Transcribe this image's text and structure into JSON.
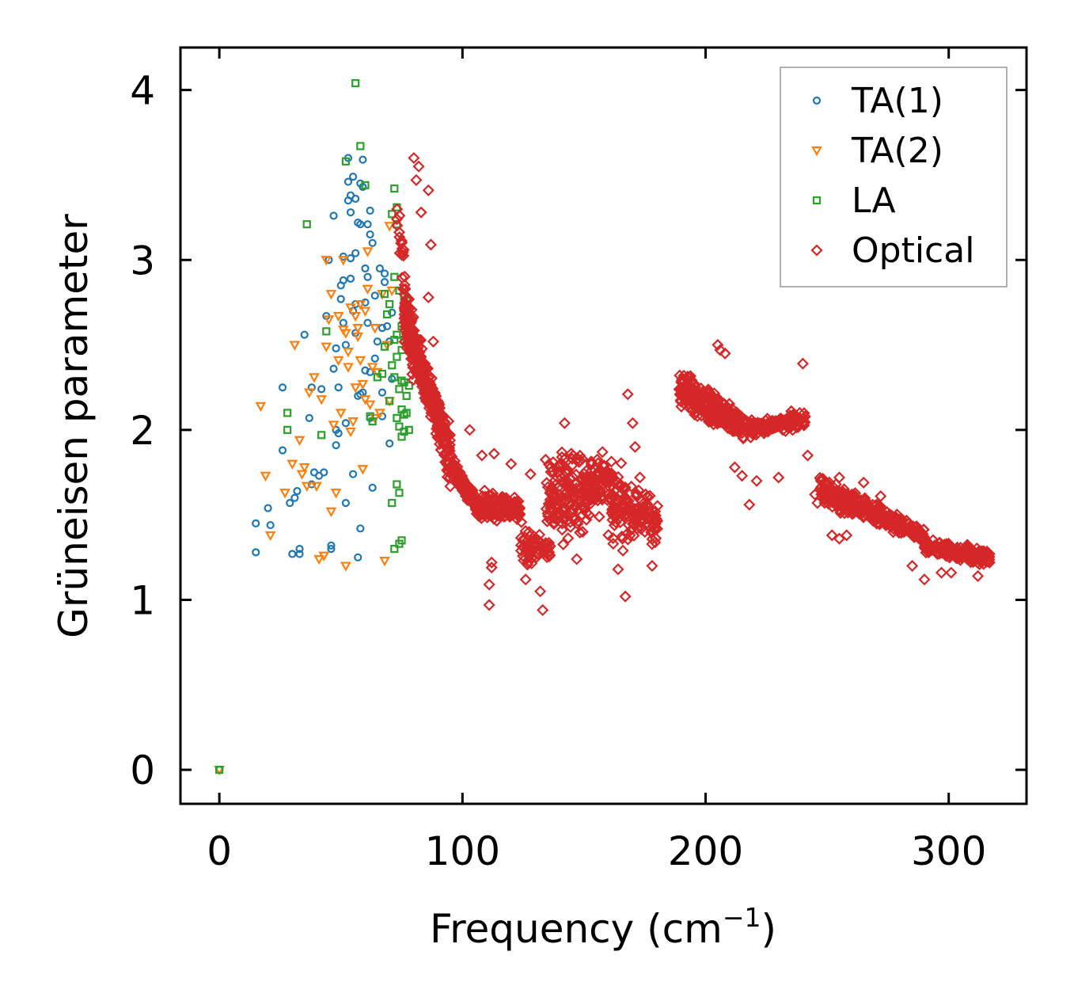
{
  "chart_data": {
    "type": "scatter",
    "title": "",
    "xlabel": "Frequency (cm",
    "xlabel_unit_exponent": "−1",
    "xlabel_close": ")",
    "ylabel": "Grüneisen parameter",
    "xlim": [
      -16,
      332
    ],
    "ylim": [
      -0.2,
      4.25
    ],
    "xticks": [
      0,
      100,
      200,
      300
    ],
    "xtick_labels": [
      "0",
      "100",
      "200",
      "300"
    ],
    "yticks": [
      0,
      1,
      2,
      3,
      4
    ],
    "ytick_labels": [
      "0",
      "1",
      "2",
      "3",
      "4"
    ],
    "legend_position": "top-right",
    "series": [
      {
        "name": "TA(1)",
        "marker": "circle",
        "color": "#1f77b4",
        "points": [
          [
            0,
            0
          ],
          [
            15,
            1.45
          ],
          [
            15,
            1.28
          ],
          [
            20,
            1.54
          ],
          [
            21,
            1.44
          ],
          [
            26,
            1.88
          ],
          [
            26,
            2.25
          ],
          [
            29,
            1.57
          ],
          [
            30,
            1.27
          ],
          [
            31,
            1.6
          ],
          [
            32,
            1.64
          ],
          [
            33,
            1.27
          ],
          [
            33,
            1.3
          ],
          [
            35,
            2.56
          ],
          [
            37,
            2.07
          ],
          [
            38,
            1.68
          ],
          [
            38,
            2.25
          ],
          [
            39,
            1.75
          ],
          [
            41,
            1.73
          ],
          [
            42,
            2.24
          ],
          [
            43,
            1.75
          ],
          [
            44,
            2.67
          ],
          [
            45,
            3.0
          ],
          [
            46,
            1.32
          ],
          [
            46,
            1.3
          ],
          [
            47,
            3.26
          ],
          [
            47,
            2.36
          ],
          [
            48,
            1.91
          ],
          [
            48,
            2.0
          ],
          [
            48,
            2.48
          ],
          [
            49,
            2.25
          ],
          [
            49,
            1.98
          ],
          [
            50,
            2.77
          ],
          [
            50,
            2.85
          ],
          [
            51,
            2.63
          ],
          [
            51,
            2.88
          ],
          [
            51,
            3.02
          ],
          [
            52,
            1.57
          ],
          [
            52,
            2.04
          ],
          [
            52,
            2.5
          ],
          [
            53,
            3.46
          ],
          [
            53,
            3.6
          ],
          [
            53,
            3.35
          ],
          [
            54,
            3.28
          ],
          [
            54,
            3.38
          ],
          [
            54,
            3.01
          ],
          [
            54,
            2.89
          ],
          [
            55,
            1.74
          ],
          [
            55,
            2.7
          ],
          [
            55,
            3.49
          ],
          [
            56,
            3.36
          ],
          [
            56,
            3.04
          ],
          [
            56,
            2.74
          ],
          [
            56,
            2.57
          ],
          [
            57,
            3.22
          ],
          [
            57,
            1.25
          ],
          [
            57,
            2.2
          ],
          [
            58,
            3.45
          ],
          [
            58,
            3.21
          ],
          [
            58,
            2.21
          ],
          [
            58,
            1.42
          ],
          [
            59,
            3.59
          ],
          [
            59,
            3.43
          ],
          [
            59,
            2.22
          ],
          [
            60,
            2.35
          ],
          [
            60,
            2.75
          ],
          [
            60,
            2.95
          ],
          [
            61,
            3.21
          ],
          [
            61,
            2.9
          ],
          [
            61,
            2.63
          ],
          [
            62,
            2.34
          ],
          [
            62,
            3.15
          ],
          [
            62,
            3.29
          ],
          [
            62,
            2.07
          ],
          [
            63,
            3.1
          ],
          [
            63,
            1.66
          ],
          [
            64,
            2.79
          ],
          [
            64,
            2.42
          ],
          [
            65,
            2.52
          ],
          [
            66,
            2.95
          ],
          [
            67,
            2.22
          ],
          [
            67,
            2.6
          ],
          [
            67,
            2.08
          ],
          [
            68,
            2.92
          ],
          [
            68,
            2.87
          ],
          [
            69,
            2.61
          ],
          [
            70,
            2.52
          ],
          [
            70,
            1.92
          ],
          [
            71,
            2.3
          ],
          [
            71,
            2.69
          ]
        ]
      },
      {
        "name": "TA(2)",
        "marker": "triangle-down",
        "color": "#ff7f0e",
        "points": [
          [
            0,
            0
          ],
          [
            17,
            2.14
          ],
          [
            19,
            1.73
          ],
          [
            21,
            1.38
          ],
          [
            27,
            1.63
          ],
          [
            30,
            1.8
          ],
          [
            31,
            2.5
          ],
          [
            33,
            1.94
          ],
          [
            34,
            1.74
          ],
          [
            35,
            1.78
          ],
          [
            36,
            1.67
          ],
          [
            37,
            2.22
          ],
          [
            39,
            2.31
          ],
          [
            40,
            1.67
          ],
          [
            41,
            1.24
          ],
          [
            42,
            2.18
          ],
          [
            43,
            1.26
          ],
          [
            44,
            2.49
          ],
          [
            44,
            3.0
          ],
          [
            45,
            2.65
          ],
          [
            46,
            1.52
          ],
          [
            46,
            2.8
          ],
          [
            47,
            2.03
          ],
          [
            48,
            1.63
          ],
          [
            49,
            2.41
          ],
          [
            49,
            2.67
          ],
          [
            50,
            2.1
          ],
          [
            51,
            2.59
          ],
          [
            51,
            3.0
          ],
          [
            52,
            1.2
          ],
          [
            52,
            2.57
          ],
          [
            53,
            2.37
          ],
          [
            53,
            2.46
          ],
          [
            54,
            1.99
          ],
          [
            54,
            2.72
          ],
          [
            55,
            2.05
          ],
          [
            56,
            2.67
          ],
          [
            56,
            2.25
          ],
          [
            57,
            2.6
          ],
          [
            57,
            2.55
          ],
          [
            58,
            2.74
          ],
          [
            58,
            2.41
          ],
          [
            59,
            2.27
          ],
          [
            59,
            1.77
          ],
          [
            60,
            2.18
          ],
          [
            60,
            2.7
          ],
          [
            61,
            3.05
          ],
          [
            61,
            2.83
          ],
          [
            62,
            2.15
          ],
          [
            63,
            2.37
          ],
          [
            64,
            2.6
          ],
          [
            64,
            2.07
          ],
          [
            65,
            2.34
          ],
          [
            66,
            2.1
          ],
          [
            67,
            2.8
          ],
          [
            68,
            1.23
          ],
          [
            69,
            2.5
          ],
          [
            70,
            2.17
          ],
          [
            70,
            3.2
          ],
          [
            71,
            2.82
          ]
        ]
      },
      {
        "name": "LA",
        "marker": "square",
        "color": "#2ca02c",
        "points": [
          [
            0,
            0
          ],
          [
            28,
            2.1
          ],
          [
            28,
            2.0
          ],
          [
            36,
            3.21
          ],
          [
            42,
            1.97
          ],
          [
            44,
            2.58
          ],
          [
            52,
            3.58
          ],
          [
            56,
            4.04
          ],
          [
            58,
            3.67
          ],
          [
            60,
            3.44
          ],
          [
            62,
            2.08
          ],
          [
            63,
            2.05
          ],
          [
            65,
            2.31
          ],
          [
            67,
            2.33
          ],
          [
            68,
            2.8
          ],
          [
            68,
            2.49
          ],
          [
            69,
            2.68
          ],
          [
            70,
            2.74
          ],
          [
            70,
            2.17
          ],
          [
            71,
            3.27
          ],
          [
            71,
            2.38
          ],
          [
            71,
            1.57
          ],
          [
            72,
            3.42
          ],
          [
            72,
            2.9
          ],
          [
            72,
            2.53
          ],
          [
            72,
            2.31
          ],
          [
            72,
            1.3
          ],
          [
            73,
            3.31
          ],
          [
            73,
            3.21
          ],
          [
            73,
            2.56
          ],
          [
            73,
            2.43
          ],
          [
            73,
            2.07
          ],
          [
            73,
            1.68
          ],
          [
            74,
            2.82
          ],
          [
            74,
            2.24
          ],
          [
            74,
            2.02
          ],
          [
            74,
            1.63
          ],
          [
            74,
            1.33
          ],
          [
            75,
            2.61
          ],
          [
            75,
            2.47
          ],
          [
            75,
            2.29
          ],
          [
            75,
            2.12
          ],
          [
            75,
            1.96
          ],
          [
            75,
            1.35
          ],
          [
            76,
            2.78
          ],
          [
            76,
            2.53
          ],
          [
            76,
            2.28
          ],
          [
            76,
            2.09
          ],
          [
            76,
            1.99
          ],
          [
            77,
            2.54
          ],
          [
            77,
            2.2
          ],
          [
            77,
            2.1
          ],
          [
            78,
            2.26
          ],
          [
            78,
            2.0
          ]
        ]
      },
      {
        "name": "Optical",
        "marker": "diamond",
        "color": "#d62728",
        "segments": [
          {
            "x": [
              73,
              80
            ],
            "y_start": [
              3.2,
              3.4
            ],
            "y_end": [
              2.2,
              2.4
            ],
            "spread": 0.3,
            "count": 40
          },
          {
            "x": [
              76,
              95
            ],
            "y_start": [
              2.8,
              2.55
            ],
            "y_end": [
              1.75,
              1.95
            ],
            "spread": 0.45,
            "count": 360
          },
          {
            "x": [
              95,
              108
            ],
            "y_start": [
              1.85,
              1.75
            ],
            "y_end": [
              1.45,
              1.55
            ],
            "spread": 0.15,
            "count": 140
          },
          {
            "x": [
              108,
              124
            ],
            "y_start": [
              1.5,
              1.62
            ],
            "y_end": [
              1.48,
              1.58
            ],
            "spread": 0.12,
            "count": 130
          },
          {
            "x": [
              124,
              136
            ],
            "y_start": [
              1.5,
              1.18
            ],
            "y_end": [
              1.3,
              1.28
            ],
            "spread": 0.15,
            "count": 60
          },
          {
            "x": [
              134,
              160
            ],
            "y_start": [
              1.3,
              1.82
            ],
            "y_end": [
              1.55,
              1.9
            ],
            "spread": 0.2,
            "count": 230
          },
          {
            "x": [
              160,
              181
            ],
            "y_start": [
              1.85,
              1.35
            ],
            "y_end": [
              1.55,
              1.35
            ],
            "spread": 0.15,
            "count": 160
          },
          {
            "x": [
              189,
              215
            ],
            "y_start": [
              2.35,
              2.15
            ],
            "y_end": [
              2.05,
              2.0
            ],
            "spread": 0.18,
            "count": 280
          },
          {
            "x": [
              215,
              241
            ],
            "y_start": [
              2.05,
              1.95
            ],
            "y_end": [
              2.0,
              2.12
            ],
            "spread": 0.12,
            "count": 160
          },
          {
            "x": [
              247,
              290
            ],
            "y_start": [
              1.72,
              1.58
            ],
            "y_end": [
              1.4,
              1.35
            ],
            "spread": 0.1,
            "count": 340
          },
          {
            "x": [
              290,
              317
            ],
            "y_start": [
              1.35,
              1.28
            ],
            "y_end": [
              1.3,
              1.2
            ],
            "spread": 0.06,
            "count": 170
          }
        ],
        "outliers": [
          [
            80,
            3.6
          ],
          [
            82,
            3.55
          ],
          [
            81,
            3.47
          ],
          [
            86,
            3.41
          ],
          [
            83,
            3.28
          ],
          [
            87,
            3.09
          ],
          [
            86,
            2.78
          ],
          [
            88,
            2.52
          ],
          [
            103,
            2.0
          ],
          [
            108,
            1.85
          ],
          [
            112,
            1.22
          ],
          [
            111,
            1.09
          ],
          [
            112,
            1.19
          ],
          [
            113,
            1.86
          ],
          [
            111,
            0.97
          ],
          [
            120,
            1.8
          ],
          [
            127,
            1.22
          ],
          [
            126,
            1.12
          ],
          [
            128,
            1.74
          ],
          [
            132,
            1.05
          ],
          [
            133,
            0.94
          ],
          [
            141,
            1.45
          ],
          [
            142,
            2.04
          ],
          [
            147,
            1.24
          ],
          [
            164,
            1.18
          ],
          [
            166,
            1.29
          ],
          [
            167,
            1.02
          ],
          [
            168,
            2.21
          ],
          [
            170,
            2.04
          ],
          [
            171,
            1.9
          ],
          [
            173,
            1.72
          ],
          [
            175,
            1.4
          ],
          [
            178,
            1.2
          ],
          [
            205,
            2.5
          ],
          [
            206,
            2.47
          ],
          [
            208,
            2.45
          ],
          [
            212,
            1.78
          ],
          [
            215,
            1.73
          ],
          [
            218,
            1.56
          ],
          [
            221,
            1.7
          ],
          [
            230,
            1.72
          ],
          [
            240,
            2.39
          ],
          [
            242,
            1.85
          ],
          [
            245,
            1.62
          ],
          [
            246,
            1.57
          ],
          [
            250,
            1.67
          ],
          [
            252,
            1.38
          ],
          [
            255,
            1.72
          ],
          [
            255,
            1.36
          ],
          [
            258,
            1.38
          ],
          [
            265,
            1.69
          ],
          [
            272,
            1.61
          ],
          [
            285,
            1.2
          ],
          [
            290,
            1.12
          ],
          [
            297,
            1.16
          ],
          [
            301,
            1.16
          ],
          [
            312,
            1.14
          ]
        ]
      }
    ]
  }
}
